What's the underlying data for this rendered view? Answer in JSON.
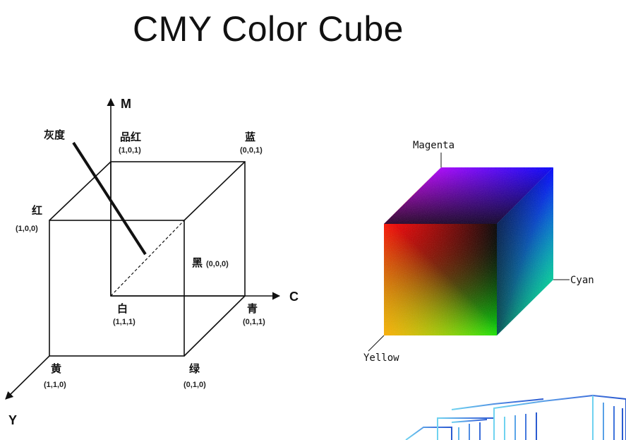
{
  "title": "CMY Color Cube",
  "axes": {
    "m": "M",
    "c": "C",
    "y": "Y"
  },
  "gray_label": "灰度",
  "vertices": {
    "magenta": {
      "name": "品红",
      "coord": "(1,0,1)"
    },
    "blue": {
      "name": "蓝",
      "coord": "(0,0,1)"
    },
    "red": {
      "name": "红",
      "coord": "(1,0,0)"
    },
    "black": {
      "name": "黑",
      "coord": "(0,0,0)"
    },
    "white": {
      "name": "白",
      "coord": "(1,1,1)"
    },
    "cyan": {
      "name": "青",
      "coord": "(0,1,1)"
    },
    "yellow": {
      "name": "黄",
      "coord": "(1,1,0)"
    },
    "green": {
      "name": "绿",
      "coord": "(0,1,0)"
    }
  },
  "color_cube": {
    "labels": {
      "magenta": "Magenta",
      "cyan": "Cyan",
      "yellow": "Yellow"
    },
    "colors": {
      "red": "#ff0000",
      "magenta": "#ff00ff",
      "blue": "#0000ff",
      "yellow": "#ffff00",
      "green": "#00ff00",
      "cyan": "#00ffff",
      "black": "#000000"
    }
  }
}
